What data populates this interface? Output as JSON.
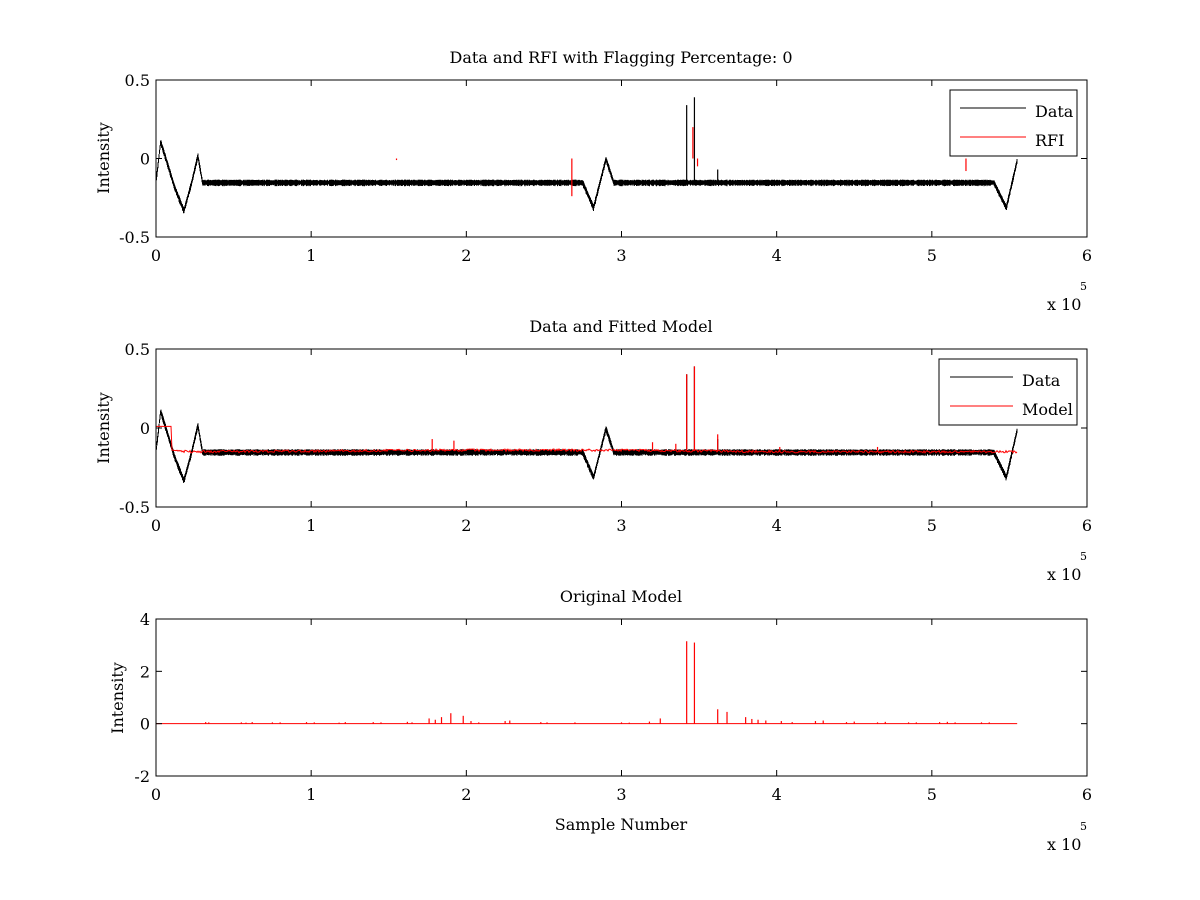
{
  "colors": {
    "data": "#000000",
    "red": "#ff0000",
    "axes": "#000000",
    "background": "#ffffff"
  },
  "chart_data": [
    {
      "type": "line",
      "title": "Data and RFI with Flagging Percentage: 0",
      "xlabel": "",
      "ylabel": "Intensity",
      "xlim": [
        0,
        600000
      ],
      "ylim": [
        -0.5,
        0.5
      ],
      "xticks": [
        0,
        1,
        2,
        3,
        4,
        5,
        6
      ],
      "yticks": [
        "-0.5",
        "0",
        "0.5"
      ],
      "x_exponent": {
        "base": "x 10",
        "power": "5"
      },
      "legend": {
        "position": "top-right",
        "entries": [
          {
            "name": "Data",
            "color": "#000000"
          },
          {
            "name": "RFI",
            "color": "#ff0000"
          }
        ]
      },
      "series": [
        {
          "name": "Data",
          "color": "#000000",
          "baseline": -0.15,
          "noise": 0.035,
          "x_end": 555000,
          "features": [
            [
              0,
              -0.15
            ],
            [
              3000,
              0.11
            ],
            [
              8000,
              -0.05
            ],
            [
              12000,
              -0.18
            ],
            [
              18000,
              -0.33
            ],
            [
              23000,
              -0.15
            ],
            [
              27000,
              0.02
            ],
            [
              30000,
              -0.15
            ],
            [
              275000,
              -0.15
            ],
            [
              282000,
              -0.31
            ],
            [
              290000,
              0.0
            ],
            [
              295000,
              -0.15
            ],
            [
              540000,
              -0.15
            ],
            [
              548000,
              -0.31
            ],
            [
              555000,
              -0.01
            ],
            [
              558000,
              -0.15
            ]
          ],
          "spikes": [
            [
              342000,
              0.34
            ],
            [
              347000,
              0.39
            ],
            [
              362000,
              -0.07
            ]
          ]
        },
        {
          "name": "RFI",
          "color": "#ff0000",
          "spikes": [
            [
              155000,
              -0.01
            ],
            [
              268000,
              -0.24
            ],
            [
              346000,
              0.2
            ],
            [
              349000,
              -0.05
            ],
            [
              522000,
              -0.08
            ]
          ]
        }
      ]
    },
    {
      "type": "line",
      "title": "Data and Fitted Model",
      "xlabel": "",
      "ylabel": "Intensity",
      "xlim": [
        0,
        600000
      ],
      "ylim": [
        -0.5,
        0.5
      ],
      "xticks": [
        0,
        1,
        2,
        3,
        4,
        5,
        6
      ],
      "yticks": [
        "-0.5",
        "0",
        "0.5"
      ],
      "x_exponent": {
        "base": "x 10",
        "power": "5"
      },
      "legend": {
        "position": "top-right",
        "entries": [
          {
            "name": "Data",
            "color": "#000000"
          },
          {
            "name": "Model",
            "color": "#ff0000"
          }
        ]
      },
      "series": [
        {
          "name": "Data",
          "color": "#000000",
          "baseline": -0.15,
          "noise": 0.035,
          "x_end": 555000,
          "features": [
            [
              0,
              -0.15
            ],
            [
              3000,
              0.11
            ],
            [
              8000,
              -0.05
            ],
            [
              12000,
              -0.18
            ],
            [
              18000,
              -0.33
            ],
            [
              23000,
              -0.15
            ],
            [
              27000,
              0.02
            ],
            [
              30000,
              -0.15
            ],
            [
              275000,
              -0.15
            ],
            [
              282000,
              -0.31
            ],
            [
              290000,
              0.0
            ],
            [
              295000,
              -0.15
            ],
            [
              540000,
              -0.15
            ],
            [
              548000,
              -0.31
            ],
            [
              555000,
              -0.01
            ],
            [
              558000,
              -0.15
            ]
          ],
          "spikes": [
            [
              342000,
              0.34
            ],
            [
              347000,
              0.39
            ],
            [
              362000,
              -0.07
            ]
          ]
        },
        {
          "name": "Model",
          "color": "#ff0000",
          "points": [
            [
              0,
              0.01
            ],
            [
              10000,
              0.01
            ],
            [
              10000,
              -0.14
            ],
            [
              20000,
              -0.15
            ],
            [
              200000,
              -0.14
            ],
            [
              300000,
              -0.14
            ],
            [
              400000,
              -0.15
            ],
            [
              500000,
              -0.15
            ],
            [
              555000,
              -0.15
            ]
          ],
          "spikes": [
            [
              342000,
              0.34
            ],
            [
              347000,
              0.39
            ],
            [
              362000,
              -0.04
            ],
            [
              178000,
              -0.07
            ],
            [
              192000,
              -0.08
            ],
            [
              320000,
              -0.09
            ],
            [
              335000,
              -0.1
            ],
            [
              402000,
              -0.12
            ],
            [
              465000,
              -0.12
            ]
          ]
        }
      ]
    },
    {
      "type": "line",
      "title": "Original Model",
      "xlabel": "Sample Number",
      "ylabel": "Intensity",
      "xlim": [
        0,
        600000
      ],
      "ylim": [
        -2,
        4
      ],
      "xticks": [
        0,
        1,
        2,
        3,
        4,
        5,
        6
      ],
      "yticks": [
        "-2",
        "0",
        "2",
        "4"
      ],
      "x_exponent": {
        "base": "x 10",
        "power": "5"
      },
      "series": [
        {
          "name": "",
          "color": "#ff0000",
          "baseline": 0,
          "x_end": 555000,
          "spikes": [
            [
              32000,
              0.06
            ],
            [
              34000,
              0.05
            ],
            [
              55000,
              0.05
            ],
            [
              58000,
              0.04
            ],
            [
              62000,
              0.06
            ],
            [
              75000,
              0.05
            ],
            [
              80000,
              0.05
            ],
            [
              97000,
              0.06
            ],
            [
              102000,
              0.05
            ],
            [
              118000,
              0.04
            ],
            [
              122000,
              0.06
            ],
            [
              140000,
              0.06
            ],
            [
              145000,
              0.05
            ],
            [
              162000,
              0.07
            ],
            [
              165000,
              0.05
            ],
            [
              176000,
              0.2
            ],
            [
              180000,
              0.15
            ],
            [
              184000,
              0.25
            ],
            [
              190000,
              0.4
            ],
            [
              198000,
              0.3
            ],
            [
              203000,
              0.1
            ],
            [
              208000,
              0.05
            ],
            [
              225000,
              0.1
            ],
            [
              228000,
              0.12
            ],
            [
              248000,
              0.06
            ],
            [
              252000,
              0.05
            ],
            [
              270000,
              0.05
            ],
            [
              300000,
              0.05
            ],
            [
              305000,
              0.04
            ],
            [
              318000,
              0.08
            ],
            [
              325000,
              0.2
            ],
            [
              342000,
              3.15
            ],
            [
              347000,
              3.1
            ],
            [
              362000,
              0.55
            ],
            [
              368000,
              0.45
            ],
            [
              380000,
              0.25
            ],
            [
              384000,
              0.18
            ],
            [
              388000,
              0.15
            ],
            [
              393000,
              0.12
            ],
            [
              403000,
              0.1
            ],
            [
              410000,
              0.06
            ],
            [
              425000,
              0.1
            ],
            [
              430000,
              0.12
            ],
            [
              445000,
              0.06
            ],
            [
              450000,
              0.08
            ],
            [
              465000,
              0.05
            ],
            [
              470000,
              0.07
            ],
            [
              485000,
              0.05
            ],
            [
              490000,
              0.05
            ],
            [
              505000,
              0.06
            ],
            [
              510000,
              0.07
            ],
            [
              515000,
              0.05
            ],
            [
              532000,
              0.05
            ],
            [
              537000,
              0.05
            ]
          ]
        }
      ]
    }
  ]
}
